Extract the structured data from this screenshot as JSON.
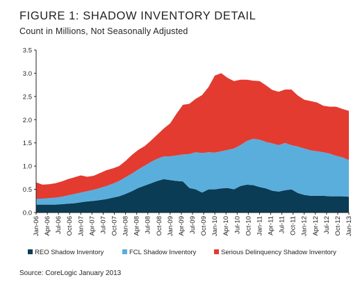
{
  "chart_data": {
    "type": "area",
    "stacked": true,
    "title": "FIGURE 1: SHADOW INVENTORY DETAIL",
    "subtitle": "Count in Millions, Not Seasonally Adjusted",
    "source": "Source: CoreLogic January 2013",
    "xlabel": "",
    "ylabel": "",
    "ylim": [
      0,
      3.5
    ],
    "yticks": [
      "0.0",
      "0.5",
      "1.0",
      "1.5",
      "2.0",
      "2.5",
      "3.0",
      "3.5"
    ],
    "xticks": [
      "Jan-06",
      "Apr-06",
      "Jul-06",
      "Oct-06",
      "Jan-07",
      "Apr-07",
      "Jul-07",
      "Oct-07",
      "Jan-08",
      "Apr-08",
      "Jul-08",
      "Oct-08",
      "Jan-09",
      "Apr-09",
      "Jul-09",
      "Oct-09",
      "Jan-10",
      "Apr-10",
      "Jul-10",
      "Oct-10",
      "Jan-11",
      "Apr-11",
      "Jul-11",
      "Oct-11",
      "Jan-12",
      "Apr-12",
      "Jul-12",
      "Oct-12",
      "Jan-13"
    ],
    "grid": false,
    "legend": "bottom",
    "series": [
      {
        "name": "REO Shadow Inventory",
        "color": "#0b3c55",
        "values": [
          0.17,
          0.17,
          0.17,
          0.17,
          0.18,
          0.19,
          0.2,
          0.22,
          0.24,
          0.25,
          0.27,
          0.29,
          0.32,
          0.35,
          0.4,
          0.46,
          0.53,
          0.58,
          0.63,
          0.68,
          0.72,
          0.7,
          0.68,
          0.67,
          0.53,
          0.5,
          0.43,
          0.5,
          0.5,
          0.52,
          0.53,
          0.5,
          0.57,
          0.6,
          0.59,
          0.55,
          0.52,
          0.47,
          0.45,
          0.48,
          0.5,
          0.42,
          0.38,
          0.36,
          0.36,
          0.36,
          0.35,
          0.35,
          0.35,
          0.34
        ]
      },
      {
        "name": "FCL Shadow Inventory",
        "color": "#5aaedc",
        "values": [
          0.13,
          0.13,
          0.14,
          0.15,
          0.16,
          0.18,
          0.2,
          0.21,
          0.22,
          0.24,
          0.26,
          0.28,
          0.3,
          0.33,
          0.36,
          0.38,
          0.4,
          0.43,
          0.46,
          0.48,
          0.49,
          0.51,
          0.55,
          0.58,
          0.73,
          0.8,
          0.85,
          0.8,
          0.79,
          0.8,
          0.82,
          0.88,
          0.88,
          0.94,
          1.0,
          1.02,
          1.0,
          1.02,
          1.0,
          1.02,
          0.95,
          1.0,
          1.0,
          0.98,
          0.96,
          0.94,
          0.92,
          0.87,
          0.84,
          0.79
        ]
      },
      {
        "name": "Serious Delinquency Shadow Inventory",
        "color": "#e33b30",
        "values": [
          0.35,
          0.3,
          0.3,
          0.31,
          0.33,
          0.35,
          0.36,
          0.37,
          0.31,
          0.3,
          0.32,
          0.34,
          0.33,
          0.32,
          0.35,
          0.4,
          0.42,
          0.42,
          0.46,
          0.52,
          0.6,
          0.71,
          0.9,
          1.07,
          1.08,
          1.15,
          1.25,
          1.4,
          1.66,
          1.68,
          1.55,
          1.45,
          1.41,
          1.32,
          1.25,
          1.26,
          1.22,
          1.15,
          1.15,
          1.15,
          1.2,
          1.1,
          1.05,
          1.06,
          1.05,
          1.0,
          1.01,
          1.06,
          1.04,
          1.06
        ]
      }
    ]
  }
}
